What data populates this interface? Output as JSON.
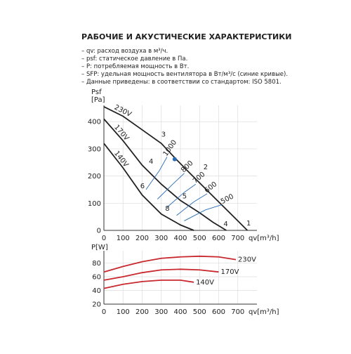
{
  "header": {
    "title": "РАБОЧИЕ И АКУСТИЧЕСКИЕ ХАРАКТЕРИСТИКИ",
    "bullets": [
      "– qv: расход воздуха в м³/ч.",
      "– psf: статическое давление в Па.",
      "– P: потребляемая мощность в Вт.",
      "– SFP: удельная мощность вентилятора в Вт/м³/с (синие кривые).",
      "– Данные приведены: в соответствии со стандартом: ISO 5801."
    ]
  },
  "chart_data": [
    {
      "type": "line",
      "ylabel": "Psf",
      "yunit": "[Pa]",
      "xlabel": "qv[m³/h]",
      "xlim": [
        0,
        800
      ],
      "xticks": [
        0,
        100,
        200,
        300,
        400,
        500,
        600,
        700
      ],
      "ylim": [
        0,
        460
      ],
      "yticks": [
        0,
        100,
        200,
        300,
        400
      ],
      "grid": true,
      "series": [
        {
          "name": "230V",
          "color": "#222222",
          "x": [
            0,
            100,
            200,
            300,
            380,
            450,
            550,
            650,
            750
          ],
          "values": [
            455,
            420,
            370,
            320,
            260,
            210,
            140,
            70,
            0
          ]
        },
        {
          "name": "170V",
          "color": "#222222",
          "x": [
            0,
            100,
            200,
            300,
            400,
            500,
            570,
            640
          ],
          "values": [
            410,
            330,
            240,
            170,
            110,
            65,
            30,
            0
          ]
        },
        {
          "name": "140V",
          "color": "#222222",
          "x": [
            0,
            100,
            200,
            300,
            400,
            470
          ],
          "values": [
            320,
            230,
            130,
            60,
            20,
            0
          ]
        },
        {
          "name": "1000",
          "color": "#2a6db5",
          "x": [
            220,
            290,
            330
          ],
          "values": [
            150,
            220,
            270
          ]
        },
        {
          "name": "800",
          "color": "#2a6db5",
          "x": [
            280,
            360,
            420
          ],
          "values": [
            115,
            170,
            210
          ]
        },
        {
          "name": "700",
          "color": "#2a6db5",
          "x": [
            330,
            420,
            480
          ],
          "values": [
            85,
            140,
            170
          ]
        },
        {
          "name": "600",
          "color": "#2a6db5",
          "x": [
            380,
            470,
            540
          ],
          "values": [
            55,
            105,
            135
          ]
        },
        {
          "name": "500",
          "color": "#2a6db5",
          "x": [
            420,
            530,
            620
          ],
          "values": [
            35,
            75,
            95
          ]
        }
      ],
      "point": {
        "x": 370,
        "y": 262,
        "color": "#2a6db5"
      },
      "annotations": [
        {
          "label": "1",
          "x": 745,
          "y": 18
        },
        {
          "label": "2",
          "x": 520,
          "y": 225
        },
        {
          "label": "3",
          "x": 300,
          "y": 345
        },
        {
          "label": "4",
          "x": 235,
          "y": 245
        },
        {
          "label": "5",
          "x": 410,
          "y": 118
        },
        {
          "label": "6",
          "x": 190,
          "y": 155
        },
        {
          "label": "8",
          "x": 320,
          "y": 72
        },
        {
          "label": "4",
          "x": 625,
          "y": 15
        }
      ]
    },
    {
      "type": "line",
      "ylabel": "P[W]",
      "xlabel": "qv[m³/h]",
      "xlim": [
        0,
        800
      ],
      "xticks": [
        0,
        100,
        200,
        300,
        400,
        500,
        600,
        700
      ],
      "ylim": [
        20,
        98
      ],
      "yticks": [
        20,
        40,
        60,
        80
      ],
      "grid": true,
      "series": [
        {
          "name": "230V",
          "color": "#c8282e",
          "x": [
            0,
            100,
            200,
            300,
            400,
            500,
            600,
            690
          ],
          "values": [
            67,
            75,
            82,
            87,
            89,
            90,
            89,
            85
          ]
        },
        {
          "name": "170V",
          "color": "#c8282e",
          "x": [
            0,
            100,
            200,
            300,
            400,
            500,
            600
          ],
          "values": [
            55,
            60,
            66,
            70,
            71,
            70,
            67
          ]
        },
        {
          "name": "140V",
          "color": "#c8282e",
          "x": [
            0,
            100,
            200,
            300,
            400,
            470
          ],
          "values": [
            43,
            49,
            53,
            55,
            55,
            52
          ]
        }
      ]
    }
  ]
}
